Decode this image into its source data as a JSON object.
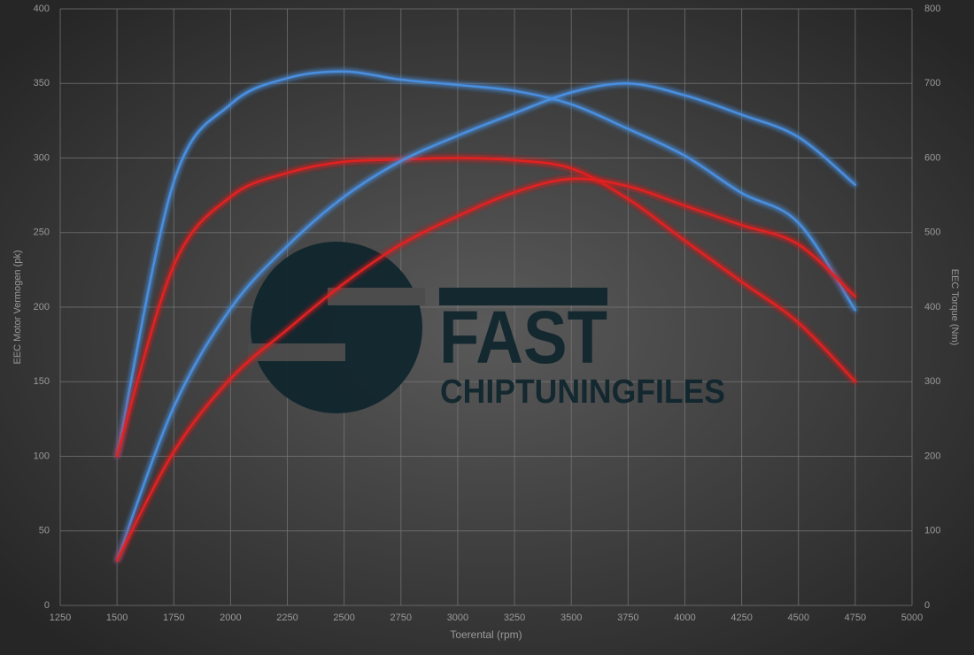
{
  "chart_data": {
    "type": "line",
    "x_label": "Toerental (rpm)",
    "y_label": "EEC Motor Vermogen (pk)",
    "y2_label": "EEC Torque (Nm)",
    "watermark": {
      "title": "FAST",
      "subtitle": "CHIPTUNINGFILES"
    },
    "x": [
      1500,
      1750,
      2000,
      2250,
      2500,
      2750,
      3000,
      3250,
      3500,
      3750,
      4000,
      4250,
      4500,
      4750
    ],
    "series": [
      {
        "color": "#4a8fe0",
        "axis": "y2",
        "values": [
          200,
          568,
          672,
          707,
          716,
          705,
          698,
          690,
          672,
          639,
          603,
          553,
          513,
          396
        ]
      },
      {
        "color": "#e02424",
        "axis": "y2",
        "values": [
          200,
          456,
          548,
          580,
          595,
          598,
          600,
          597,
          586,
          545,
          489,
          434,
          379,
          300
        ]
      },
      {
        "color": "#4a8fe0",
        "values": [
          30,
          133,
          199,
          241,
          274,
          298,
          315,
          330,
          344,
          350,
          342,
          329,
          314,
          282
        ]
      },
      {
        "color": "#e02424",
        "values": [
          30,
          103,
          152,
          185,
          216,
          242,
          261,
          277,
          286,
          281,
          268,
          255,
          242,
          207
        ]
      }
    ],
    "xlim": [
      1250,
      5000
    ],
    "xticks": [
      1250,
      1500,
      1750,
      2000,
      2250,
      2500,
      2750,
      3000,
      3250,
      3500,
      3750,
      4000,
      4250,
      4500,
      4750,
      5000
    ],
    "ylim": [
      0,
      400
    ],
    "yticks": [
      0,
      50,
      100,
      150,
      200,
      250,
      300,
      350,
      400
    ],
    "y2lim": [
      0,
      800
    ],
    "y2ticks": [
      0,
      100,
      200,
      300,
      400,
      500,
      600,
      700,
      800
    ],
    "grid": true
  }
}
